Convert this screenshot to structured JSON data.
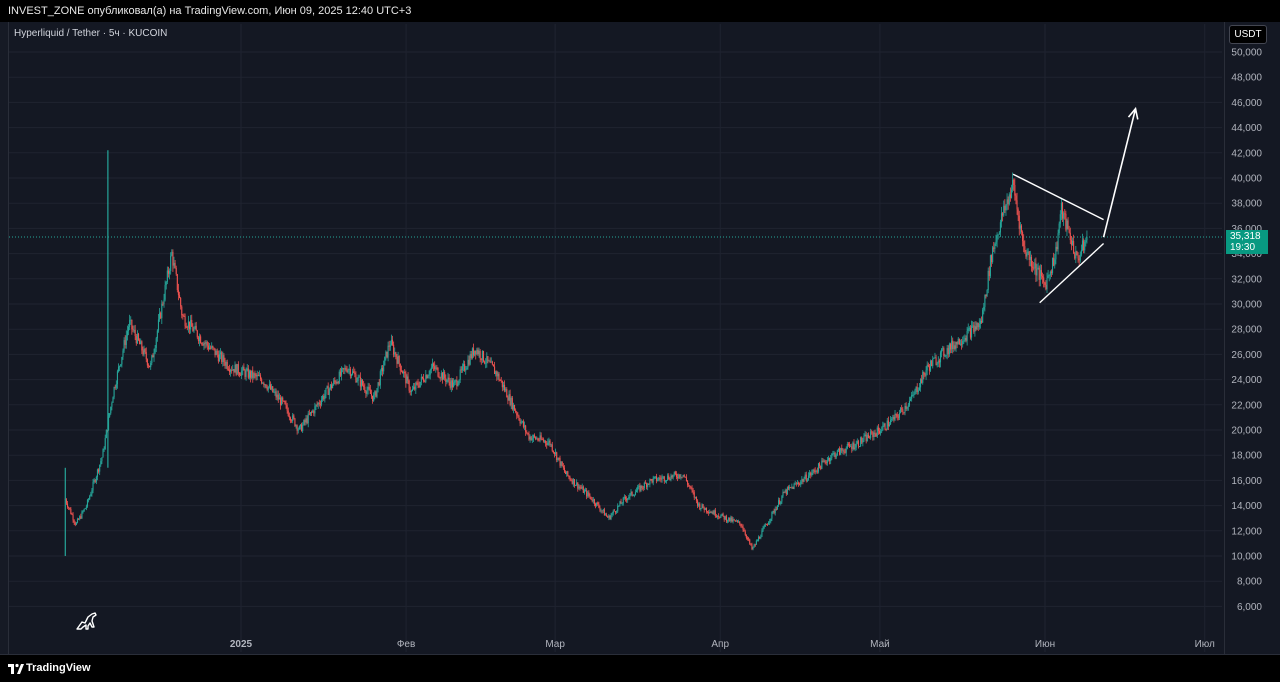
{
  "header": {
    "publish_line": "INVEST_ZONE опубликовал(а) на TradingView.com, Июн 09, 2025 12:40 UTC+3"
  },
  "symbol": {
    "label": "Hyperliquid / Tether · 5ч · KUCOIN"
  },
  "axis": {
    "currency": "USDT"
  },
  "last_price": {
    "value": "35,318",
    "countdown": "19:30"
  },
  "footer": {
    "brand": "TradingView"
  },
  "icons": {
    "tradingview_logo": "tradingview-logo-icon",
    "dino": "dinosaur-icon"
  },
  "colors": {
    "up": "#26a69a",
    "down": "#ef5350",
    "last_price_tag": "#089981",
    "drawing": "#ffffff"
  },
  "chart_data": {
    "type": "candlestick",
    "timeframe": "5ч",
    "last_price": 35318,
    "ylim": [
      4000,
      51000
    ],
    "y_ticks": [
      "6,000",
      "8,000",
      "10,000",
      "12,000",
      "14,000",
      "16,000",
      "18,000",
      "20,000",
      "22,000",
      "24,000",
      "26,000",
      "28,000",
      "30,000",
      "32,000",
      "34,000",
      "36,000",
      "38,000",
      "40,000",
      "42,000",
      "44,000",
      "46,000",
      "48,000",
      "50,000"
    ],
    "x_ticks": [
      "2025",
      "Фев",
      "Мар",
      "Апр",
      "Май",
      "Июн",
      "Июл"
    ],
    "price_path": [
      {
        "date": "2024-11-29",
        "price": 14500
      },
      {
        "date": "2024-12-01",
        "price": 12500
      },
      {
        "date": "2024-12-03",
        "price": 14000
      },
      {
        "date": "2024-12-06",
        "price": 18000
      },
      {
        "date": "2024-12-08",
        "price": 23000
      },
      {
        "date": "2024-12-11",
        "price": 28500
      },
      {
        "date": "2024-12-15",
        "price": 25000
      },
      {
        "date": "2024-12-19",
        "price": 34000
      },
      {
        "date": "2024-12-21",
        "price": 29000
      },
      {
        "date": "2024-12-25",
        "price": 27000
      },
      {
        "date": "2024-12-30",
        "price": 25000
      },
      {
        "date": "2025-01-05",
        "price": 24000
      },
      {
        "date": "2025-01-09",
        "price": 22000
      },
      {
        "date": "2025-01-12",
        "price": 20000
      },
      {
        "date": "2025-01-17",
        "price": 23000
      },
      {
        "date": "2025-01-21",
        "price": 25000
      },
      {
        "date": "2025-01-26",
        "price": 22500
      },
      {
        "date": "2025-01-29",
        "price": 27000
      },
      {
        "date": "2025-02-02",
        "price": 23000
      },
      {
        "date": "2025-02-06",
        "price": 25000
      },
      {
        "date": "2025-02-10",
        "price": 23500
      },
      {
        "date": "2025-02-14",
        "price": 26500
      },
      {
        "date": "2025-02-18",
        "price": 24500
      },
      {
        "date": "2025-02-21",
        "price": 22000
      },
      {
        "date": "2025-02-24",
        "price": 19500
      },
      {
        "date": "2025-02-28",
        "price": 19000
      },
      {
        "date": "2025-03-03",
        "price": 16500
      },
      {
        "date": "2025-03-08",
        "price": 14500
      },
      {
        "date": "2025-03-11",
        "price": 13000
      },
      {
        "date": "2025-03-14",
        "price": 14500
      },
      {
        "date": "2025-03-19",
        "price": 16000
      },
      {
        "date": "2025-03-25",
        "price": 16500
      },
      {
        "date": "2025-03-28",
        "price": 14000
      },
      {
        "date": "2025-04-02",
        "price": 13000
      },
      {
        "date": "2025-04-05",
        "price": 12500
      },
      {
        "date": "2025-04-07",
        "price": 10500
      },
      {
        "date": "2025-04-09",
        "price": 12000
      },
      {
        "date": "2025-04-13",
        "price": 15000
      },
      {
        "date": "2025-04-18",
        "price": 16500
      },
      {
        "date": "2025-04-22",
        "price": 18000
      },
      {
        "date": "2025-04-27",
        "price": 19000
      },
      {
        "date": "2025-05-01",
        "price": 20000
      },
      {
        "date": "2025-05-04",
        "price": 21000
      },
      {
        "date": "2025-05-07",
        "price": 22500
      },
      {
        "date": "2025-05-10",
        "price": 25000
      },
      {
        "date": "2025-05-14",
        "price": 26500
      },
      {
        "date": "2025-05-17",
        "price": 27500
      },
      {
        "date": "2025-05-20",
        "price": 28500
      },
      {
        "date": "2025-05-22",
        "price": 34000
      },
      {
        "date": "2025-05-24",
        "price": 37000
      },
      {
        "date": "2025-05-26",
        "price": 39500
      },
      {
        "date": "2025-05-28",
        "price": 34500
      },
      {
        "date": "2025-05-30",
        "price": 33000
      },
      {
        "date": "2025-06-01",
        "price": 31500
      },
      {
        "date": "2025-06-03",
        "price": 34000
      },
      {
        "date": "2025-06-04",
        "price": 37500
      },
      {
        "date": "2025-06-06",
        "price": 35000
      },
      {
        "date": "2025-06-07",
        "price": 33500
      },
      {
        "date": "2025-06-09",
        "price": 35318
      }
    ],
    "spikes": [
      {
        "date": "2024-11-29",
        "high": 17000,
        "low": 10000
      },
      {
        "date": "2024-12-07",
        "high": 42200,
        "low": 17000
      }
    ],
    "drawings": {
      "triangle_upper": [
        {
          "date": "2025-05-26",
          "price": 40300
        },
        {
          "date": "2025-06-12",
          "price": 36700
        }
      ],
      "triangle_lower": [
        {
          "date": "2025-05-31",
          "price": 30100
        },
        {
          "date": "2025-06-12",
          "price": 34800
        }
      ],
      "breakout_arrow": [
        {
          "date": "2025-06-12",
          "price": 35300
        },
        {
          "date": "2025-06-18",
          "price": 45500
        }
      ]
    }
  }
}
